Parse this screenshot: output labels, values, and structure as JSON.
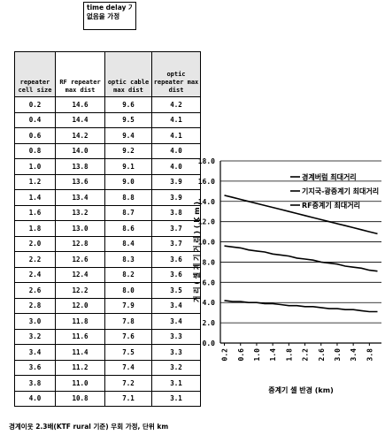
{
  "note": {
    "line1": "time delay 기능",
    "line2": "없음을 가정"
  },
  "table": {
    "headers": [
      "repeater cell size",
      "RF repeater max dist",
      "optic cable max dist",
      "optic repeater max dist"
    ],
    "rows": [
      [
        "0.2",
        "14.6",
        "9.6",
        "4.2"
      ],
      [
        "0.4",
        "14.4",
        "9.5",
        "4.1"
      ],
      [
        "0.6",
        "14.2",
        "9.4",
        "4.1"
      ],
      [
        "0.8",
        "14.0",
        "9.2",
        "4.0"
      ],
      [
        "1.0",
        "13.8",
        "9.1",
        "4.0"
      ],
      [
        "1.2",
        "13.6",
        "9.0",
        "3.9"
      ],
      [
        "1.4",
        "13.4",
        "8.8",
        "3.9"
      ],
      [
        "1.6",
        "13.2",
        "8.7",
        "3.8"
      ],
      [
        "1.8",
        "13.0",
        "8.6",
        "3.7"
      ],
      [
        "2.0",
        "12.8",
        "8.4",
        "3.7"
      ],
      [
        "2.2",
        "12.6",
        "8.3",
        "3.6"
      ],
      [
        "2.4",
        "12.4",
        "8.2",
        "3.6"
      ],
      [
        "2.6",
        "12.2",
        "8.0",
        "3.5"
      ],
      [
        "2.8",
        "12.0",
        "7.9",
        "3.4"
      ],
      [
        "3.0",
        "11.8",
        "7.8",
        "3.4"
      ],
      [
        "3.2",
        "11.6",
        "7.6",
        "3.3"
      ],
      [
        "3.4",
        "11.4",
        "7.5",
        "3.3"
      ],
      [
        "3.6",
        "11.2",
        "7.4",
        "3.2"
      ],
      [
        "3.8",
        "11.0",
        "7.2",
        "3.1"
      ],
      [
        "4.0",
        "10.8",
        "7.1",
        "3.1"
      ]
    ]
  },
  "caption": "경계이웃 2.3배(KTF rural 기준) 우회 가정, 단위 km",
  "colors": {
    "line": "#000000",
    "grid": "#000000",
    "header_bg": "#e6e6e6"
  },
  "chart_data": {
    "type": "line",
    "xlabel": "중계기 셀 반경 (km)",
    "ylabel": "거 리 ( 셀 계 기 거 리 ) ( K m )",
    "ylim": [
      0,
      18
    ],
    "yticks": [
      "0.0",
      "2.0",
      "4.0",
      "6.0",
      "8.0",
      "10.0",
      "12.0",
      "14.0",
      "16.0",
      "18.0"
    ],
    "x": [
      0.2,
      0.4,
      0.6,
      0.8,
      1.0,
      1.2,
      1.4,
      1.6,
      1.8,
      2.0,
      2.2,
      2.4,
      2.6,
      2.8,
      3.0,
      3.2,
      3.4,
      3.6,
      3.8,
      4.0
    ],
    "xticks": [
      "0.2",
      "0.6",
      "1.0",
      "1.4",
      "1.8",
      "2.2",
      "2.6",
      "3.0",
      "3.4",
      "3.8"
    ],
    "legend_position": "top-right",
    "grid": true,
    "series": [
      {
        "name": "경계버럼 최대거리",
        "values": [
          14.6,
          14.4,
          14.2,
          14.0,
          13.8,
          13.6,
          13.4,
          13.2,
          13.0,
          12.8,
          12.6,
          12.4,
          12.2,
          12.0,
          11.8,
          11.6,
          11.4,
          11.2,
          11.0,
          10.8
        ]
      },
      {
        "name": "기지국-광중계기 최대거리",
        "values": [
          9.6,
          9.5,
          9.4,
          9.2,
          9.1,
          9.0,
          8.8,
          8.7,
          8.6,
          8.4,
          8.3,
          8.2,
          8.0,
          7.9,
          7.8,
          7.6,
          7.5,
          7.4,
          7.2,
          7.1
        ]
      },
      {
        "name": "RF중계기 최대거리",
        "values": [
          4.2,
          4.1,
          4.1,
          4.0,
          4.0,
          3.9,
          3.9,
          3.8,
          3.7,
          3.7,
          3.6,
          3.6,
          3.5,
          3.4,
          3.4,
          3.3,
          3.3,
          3.2,
          3.1,
          3.1
        ]
      }
    ]
  }
}
